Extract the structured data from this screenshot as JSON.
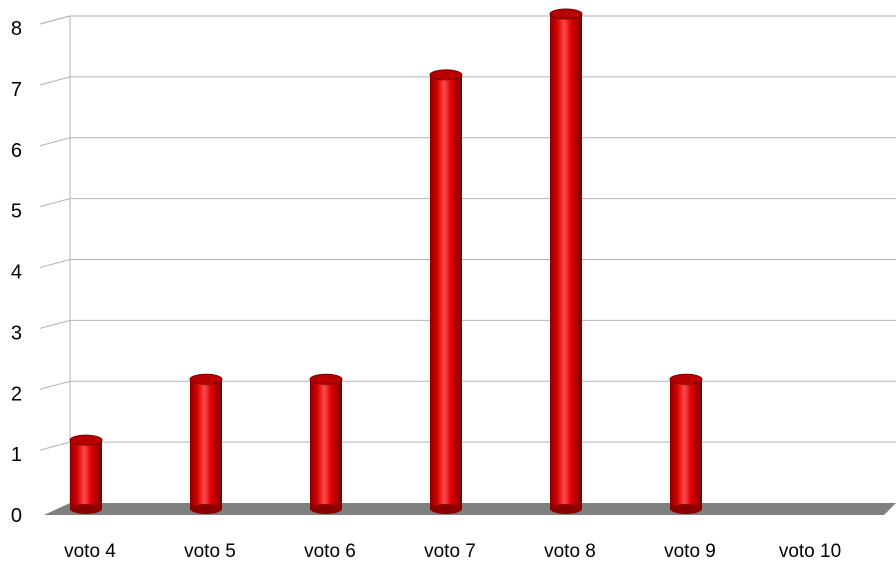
{
  "chart_data": {
    "type": "bar",
    "title": "",
    "xlabel": "",
    "ylabel": "",
    "categories": [
      "voto 4",
      "voto 5",
      "voto 6",
      "voto 7",
      "voto 8",
      "voto 9",
      "voto 10"
    ],
    "values": [
      1,
      2,
      2,
      7,
      8,
      2,
      0
    ],
    "ylim": [
      0,
      8
    ],
    "yticks": [
      "0",
      "1",
      "2",
      "3",
      "4",
      "5",
      "6",
      "7",
      "8"
    ],
    "grid": true,
    "style": "3d-cylinder",
    "colors": {
      "bar": "#d40000",
      "bar_dark": "#7a0000",
      "bar_highlight": "#ff5a5a",
      "floor": "#808080",
      "grid": "#b3b3b3"
    }
  }
}
